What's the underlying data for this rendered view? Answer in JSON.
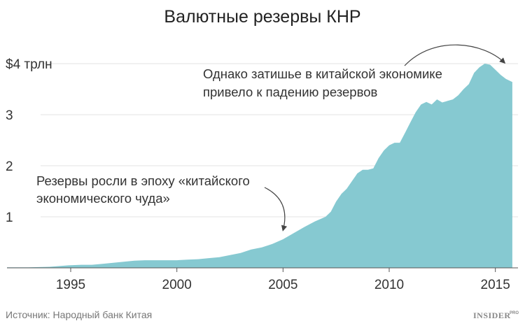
{
  "chart_data": {
    "type": "area",
    "title": "Валютные резервы КНР",
    "xlabel": "",
    "ylabel": "",
    "xlim": [
      1992.0,
      2016.0
    ],
    "ylim": [
      0,
      4
    ],
    "y_ticks": [
      1,
      2,
      3,
      4
    ],
    "y_tick_labels": [
      "1",
      "2",
      "3",
      "$4 трлн"
    ],
    "x_ticks": [
      1995,
      2000,
      2005,
      2010,
      2015
    ],
    "x_tick_labels": [
      "1995",
      "2000",
      "2005",
      "2010",
      "2015"
    ],
    "grid": "horizontal",
    "legend": "none",
    "series": [
      {
        "color": "#86c9d1",
        "x": [
          1992.0,
          1993.0,
          1994.0,
          1994.9,
          1995.5,
          1996.0,
          1996.5,
          1997.0,
          1997.5,
          1998.0,
          1998.5,
          1999.0,
          1999.5,
          2000.0,
          2000.5,
          2001.0,
          2001.5,
          2002.0,
          2002.5,
          2003.0,
          2003.5,
          2004.0,
          2004.5,
          2005.0,
          2005.5,
          2006.0,
          2006.5,
          2007.0,
          2007.25,
          2007.5,
          2007.75,
          2008.0,
          2008.25,
          2008.5,
          2008.75,
          2009.0,
          2009.25,
          2009.5,
          2009.75,
          2010.0,
          2010.25,
          2010.5,
          2010.75,
          2011.0,
          2011.25,
          2011.5,
          2011.75,
          2012.0,
          2012.25,
          2012.5,
          2012.75,
          2013.0,
          2013.25,
          2013.5,
          2013.75,
          2014.0,
          2014.25,
          2014.5,
          2014.75,
          2015.0,
          2015.25,
          2015.5,
          2015.8
        ],
        "values": [
          0.01,
          0.01,
          0.02,
          0.05,
          0.06,
          0.06,
          0.08,
          0.1,
          0.12,
          0.14,
          0.15,
          0.15,
          0.15,
          0.15,
          0.16,
          0.17,
          0.19,
          0.21,
          0.25,
          0.29,
          0.36,
          0.4,
          0.47,
          0.56,
          0.68,
          0.8,
          0.91,
          1.0,
          1.1,
          1.3,
          1.45,
          1.55,
          1.7,
          1.85,
          1.92,
          1.92,
          1.95,
          2.15,
          2.3,
          2.4,
          2.45,
          2.45,
          2.65,
          2.85,
          3.05,
          3.2,
          3.25,
          3.2,
          3.3,
          3.24,
          3.27,
          3.3,
          3.38,
          3.5,
          3.6,
          3.82,
          3.93,
          4.0,
          3.98,
          3.88,
          3.78,
          3.7,
          3.64
        ]
      }
    ],
    "annotations": [
      {
        "text_lines": [
          "Резервы росли в эпоху «китайского",
          "экономического чуда»"
        ],
        "arrow_to": [
          2005.0,
          0.6
        ]
      },
      {
        "text_lines": [
          "Однако затишье в китайской экономике",
          "привело к падению резервов"
        ],
        "arrow_to": [
          2015.7,
          3.66
        ]
      }
    ]
  },
  "footer": {
    "source": "Источник: Народный банк Китая",
    "logo": "INSIDER",
    "logo_sup": "PRO"
  }
}
